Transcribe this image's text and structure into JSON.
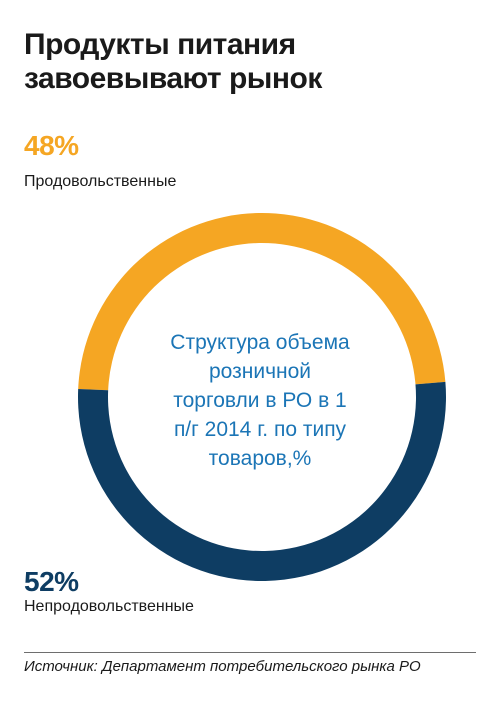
{
  "header": {
    "title": "Продукты питания\nзавоевывают рынок"
  },
  "colors": {
    "food": "#F5A623",
    "nonfood": "#0E3D63",
    "center_text": "#1B75B6"
  },
  "chart_data": {
    "type": "pie",
    "title": "Продукты питания завоевывают рынок",
    "center_label": "Структура объема\nрозничной\nторговли в РО в 1\nп/г 2014 г. по типу\nтоваров,%",
    "donut": true,
    "slices": [
      {
        "label": "Продовольственные",
        "value": 48,
        "value_label": "48%",
        "color": "#F5A623"
      },
      {
        "label": "Непродовольственные",
        "value": 52,
        "value_label": "52%",
        "color": "#0E3D63"
      }
    ]
  },
  "footer": {
    "source": "Источник: Департамент потребительского рынка РО"
  }
}
